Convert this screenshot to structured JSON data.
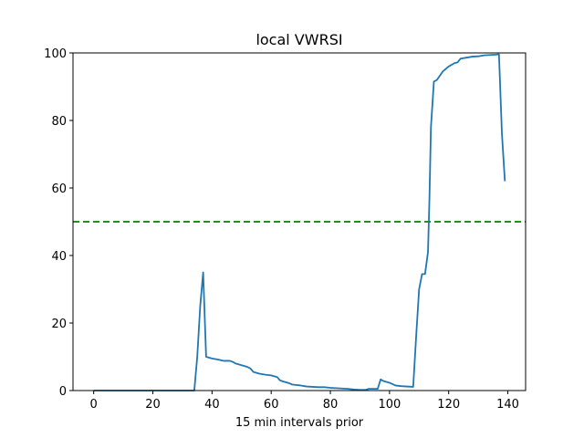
{
  "chart_data": {
    "type": "line",
    "title": "local VWRSI",
    "xlabel": "15 min intervals prior",
    "ylabel": "",
    "xlim": [
      -7,
      146
    ],
    "ylim": [
      0,
      100
    ],
    "x_ticks": [
      0,
      20,
      40,
      60,
      80,
      100,
      120,
      140
    ],
    "y_ticks": [
      0,
      20,
      40,
      60,
      80,
      100
    ],
    "grid": false,
    "legend": "none",
    "series": [
      {
        "color": "#1f77b4",
        "x": [
          0,
          10,
          20,
          30,
          34,
          35,
          36,
          37,
          38,
          40,
          42,
          44,
          46,
          47,
          48,
          50,
          52,
          53,
          54,
          56,
          58,
          60,
          62,
          63,
          64,
          66,
          67,
          68,
          70,
          72,
          74,
          76,
          78,
          80,
          82,
          84,
          86,
          88,
          90,
          92,
          93,
          94,
          96,
          97,
          98,
          100,
          102,
          104,
          106,
          108,
          109,
          110,
          111,
          112,
          113,
          113.5,
          114,
          115,
          116,
          118,
          120,
          122,
          123,
          124,
          126,
          128,
          130,
          132,
          134,
          136,
          137,
          138,
          139
        ],
        "y": [
          0,
          0,
          0,
          0,
          0,
          10,
          25,
          35,
          10,
          9.5,
          9.2,
          8.8,
          8.8,
          8.5,
          8,
          7.5,
          7.0,
          6.5,
          5.5,
          5,
          4.7,
          4.5,
          4.0,
          3.0,
          2.7,
          2.2,
          1.8,
          1.7,
          1.5,
          1.2,
          1.1,
          1.0,
          1.0,
          0.8,
          0.7,
          0.6,
          0.5,
          0.3,
          0.2,
          0.2,
          0.5,
          0.5,
          0.5,
          3.3,
          2.8,
          2.3,
          1.5,
          1.3,
          1.2,
          1.1,
          16,
          30,
          34.5,
          34.5,
          41,
          57,
          78,
          91.5,
          92,
          94.5,
          96,
          97,
          97.2,
          98.3,
          98.6,
          98.9,
          99.0,
          99.3,
          99.4,
          99.5,
          99.6,
          76,
          62
        ]
      }
    ],
    "reference_lines": [
      {
        "axis": "y",
        "value": 50,
        "color": "#008000",
        "style": "dashed"
      }
    ]
  }
}
